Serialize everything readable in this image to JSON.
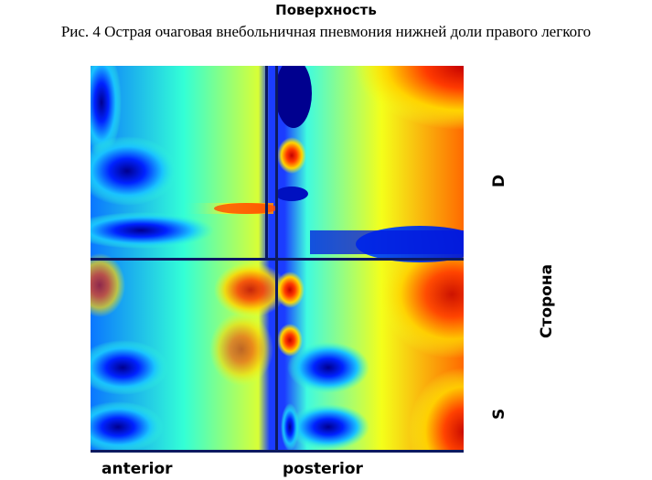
{
  "header": {
    "title": "Поверхность",
    "caption": "Рис. 4 Острая очаговая внебольничная пневмония нижней доли правого легкого"
  },
  "figure": {
    "x_labels": {
      "left": "anterior",
      "right": "posterior"
    },
    "side_labels": {
      "top": "D",
      "bottom": "S"
    },
    "side_axis_title": "Сторона",
    "colors": {
      "low": "#00008f",
      "mid_low": "#0a76ff",
      "mid": "#33ffd6",
      "mid_high": "#f4ff1a",
      "high": "#e60000",
      "divider": "#0c1a60"
    }
  }
}
